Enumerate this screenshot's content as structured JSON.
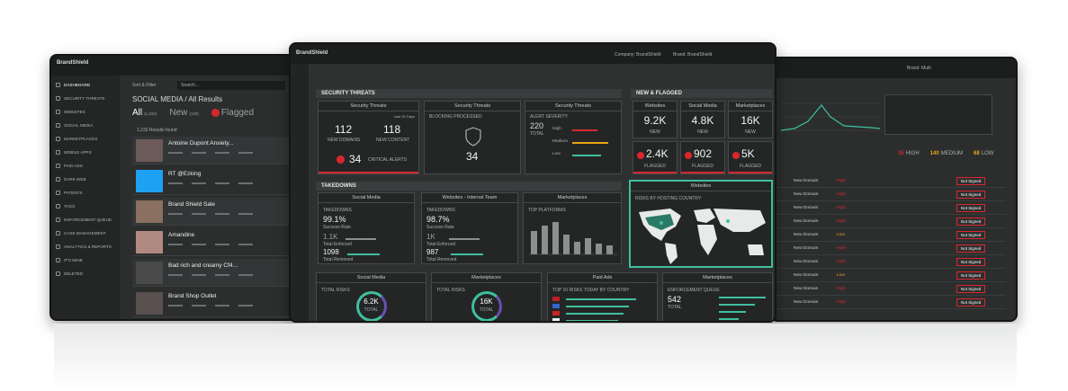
{
  "left_screen": {
    "brand": "BrandShield",
    "nav": [
      "DASHBOARD",
      "SECURITY THREATS",
      "WEBSITES",
      "SOCIAL MEDIA",
      "MARKETPLACES",
      "MOBILE APPS",
      "PAID ADS",
      "DARK WEB",
      "PATENTS",
      "TAGS",
      "ENFORCEMENT QUEUE",
      "CASE MANAGEMENT",
      "ANALYTICS & REPORTS",
      "IT'S MINE",
      "DELETED"
    ],
    "toolbar": [
      "Sort & Filter",
      "Search..."
    ],
    "heading": "SOCIAL MEDIA / All Results",
    "tabs": [
      {
        "label": "All",
        "count": "(1,232)"
      },
      {
        "label": "New",
        "count": "(128)"
      },
      {
        "label": "Flagged"
      }
    ],
    "results_found": "1,232 Results found",
    "posts": [
      "Antoine Dupont Anxiety...",
      "RT @Ezking",
      "Brand Shield Sale",
      "Amandine",
      "Bad rich and creamy Cf4...",
      "Brand Shop Outlet"
    ]
  },
  "center_screen": {
    "brand": "BrandShield",
    "company": "Company: BrandShield",
    "brand_filter": "Brand: BrandShield",
    "security_threats": {
      "title": "SECURITY THREATS",
      "card_title": "Security Threats",
      "period": "Last 30 Days",
      "new_domains": "112",
      "new_domains_label": "NEW DOMAINS",
      "new_content": "118",
      "new_content_label": "NEW CONTENT",
      "critical": "34",
      "critical_label": "CRITICAL ALERTS",
      "blocking_label": "BLOCKING PROCESSED",
      "blocking": "34",
      "severity_label": "ALERT SEVERITY",
      "severity_total": "220",
      "severity_total_label": "TOTAL",
      "levels": [
        "High",
        "Medium",
        "Low"
      ]
    },
    "new_flagged": {
      "title": "NEW & FLAGGED",
      "new_label": "NEW",
      "flagged_label": "FLAGGED",
      "columns": [
        {
          "name": "Websites",
          "new": "9.2K",
          "flagged": "2.4K"
        },
        {
          "name": "Social Media",
          "new": "4.8K",
          "flagged": "902"
        },
        {
          "name": "Marketplaces",
          "new": "16K",
          "flagged": "5K"
        }
      ]
    },
    "takedowns": {
      "title": "TAKEDOWNS",
      "cards": [
        {
          "title": "Social Media",
          "label": "TAKEDOWNS",
          "rate": "99.1%",
          "rate_label": "Success Rate",
          "enforced": "1.1K",
          "enforced_label": "Total Enforced",
          "removed": "1098",
          "removed_label": "Total Removed"
        },
        {
          "title": "Websites - Internal Team",
          "label": "TAKEDOWNS",
          "rate": "98.7%",
          "rate_label": "Success Rate",
          "enforced": "1K",
          "enforced_label": "Total Enforced",
          "removed": "987",
          "removed_label": "Total Removed"
        }
      ],
      "marketplaces_title": "Marketplaces",
      "marketplaces_label": "TOP PLATFORMS",
      "map_title": "Websites",
      "map_label": "RISKS BY HOSTING COUNTRY"
    },
    "bottom": [
      {
        "title": "Social Media",
        "label": "TOTAL RISKS",
        "value": "6.2K",
        "unit": "TOTAL"
      },
      {
        "title": "Marketplaces",
        "label": "TOTAL RISKS",
        "value": "16K",
        "unit": "TOTAL"
      },
      {
        "title": "Paid Ads",
        "label": "TOP 10 RISKS TODAY BY COUNTRY"
      },
      {
        "title": "Marketplaces",
        "label": "ENFORCEMENT QUEUE",
        "value": "542",
        "unit": "TOTAL"
      }
    ]
  },
  "right_screen": {
    "brand_filter": "Brand: Multi",
    "severity": [
      {
        "count": "35",
        "label": "HIGH"
      },
      {
        "count": "140",
        "label": "MEDIUM"
      },
      {
        "count": "68",
        "label": "LOW"
      }
    ],
    "rows": [
      {
        "name": "New Domain",
        "severity": "High"
      },
      {
        "name": "New Domain",
        "severity": "High"
      },
      {
        "name": "New Domain",
        "severity": "High"
      },
      {
        "name": "New Domain",
        "severity": "High"
      },
      {
        "name": "New Domain",
        "severity": "Low"
      },
      {
        "name": "New Domain",
        "severity": "High"
      },
      {
        "name": "New Domain",
        "severity": "High"
      },
      {
        "name": "New Domain",
        "severity": "Low"
      },
      {
        "name": "New Domain",
        "severity": "High"
      },
      {
        "name": "New Domain",
        "severity": "High"
      }
    ],
    "action": "Not Signed"
  }
}
